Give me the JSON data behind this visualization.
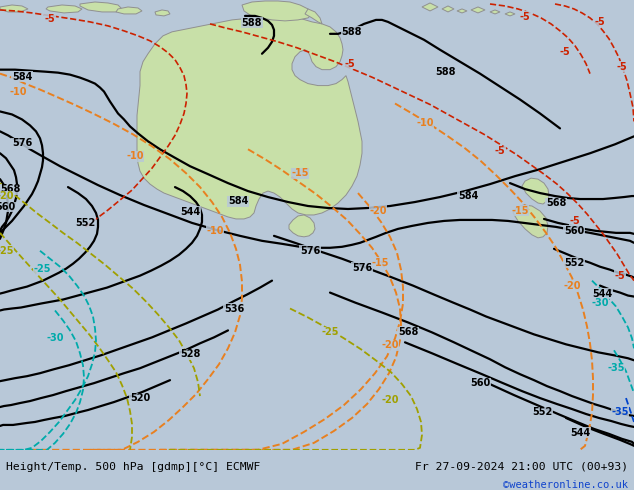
{
  "title_left": "Height/Temp. 500 hPa [gdmp][°C] ECMWF",
  "title_right": "Fr 27-09-2024 21:00 UTC (00+93)",
  "copyright": "©weatheronline.co.uk",
  "bg_color": "#b8c8d8",
  "land_color": "#c8e0a8",
  "land_edge": "#909090",
  "bottom_bg": "#d8d8d8",
  "figsize": [
    6.34,
    4.9
  ],
  "dpi": 100
}
